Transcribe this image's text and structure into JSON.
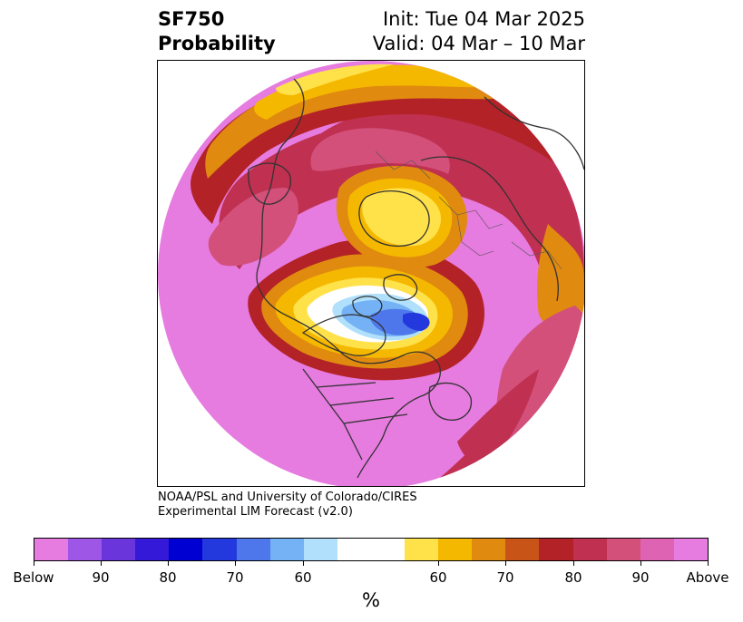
{
  "title": {
    "left_line1": "SF750",
    "left_line2": "Probability",
    "right_line1": "Init: Tue 04 Mar 2025",
    "right_line2": "Valid: 04 Mar – 10 Mar"
  },
  "credit": {
    "line1": "NOAA/PSL and University of Colorado/CIRES",
    "line2": "Experimental LIM Forecast (v2.0)"
  },
  "colorbar": {
    "label": "%",
    "below_colors": [
      "#e67be0",
      "#9e56e6",
      "#6a36dc",
      "#3419d8",
      "#0000d2",
      "#2339dd",
      "#4e77eb",
      "#74b2f5",
      "#b0e0fb"
    ],
    "neutral_color": "#ffffff",
    "above_colors": [
      "#ffe14a",
      "#f5b800",
      "#e08a10",
      "#c85418",
      "#b32226",
      "#c03050",
      "#d2507a",
      "#df63b3",
      "#e67be0"
    ],
    "ticks": [
      "Below",
      "90",
      "80",
      "70",
      "60",
      "60",
      "70",
      "80",
      "90",
      "Above"
    ]
  },
  "map": {
    "projection": "north-polar-stereographic",
    "background": "#ffffff",
    "coastline_color": "#333333"
  }
}
